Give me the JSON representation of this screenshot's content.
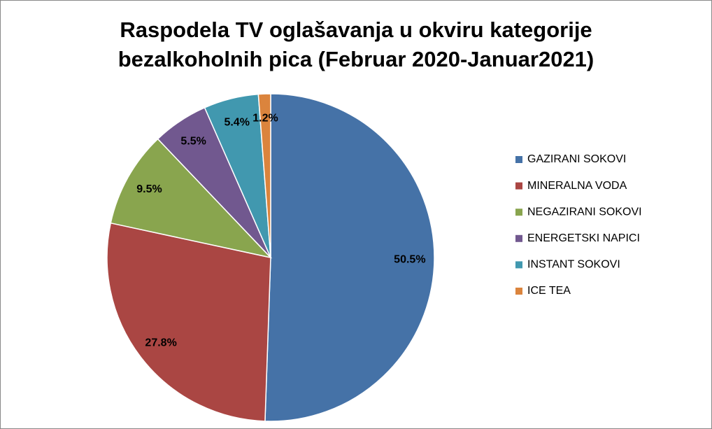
{
  "chart_data": {
    "type": "pie",
    "title": [
      "Raspodela TV oglašavanja u okviru kategorije",
      "bezalkoholnih pica (Februar 2020-Januar2021)"
    ],
    "categories": [
      "GAZIRANI SOKOVI",
      "MINERALNA VODA",
      "NEGAZIRANI SOKOVI",
      "ENERGETSKI NAPICI",
      "INSTANT SOKOVI",
      "ICE TEA"
    ],
    "values": [
      50.5,
      27.8,
      9.5,
      5.5,
      5.4,
      1.2
    ],
    "value_labels": [
      "50.5%",
      "27.8%",
      "9.5%",
      "5.5%",
      "5.4%",
      "1.2%"
    ],
    "colors": [
      "#4572a7",
      "#aa4643",
      "#89a54e",
      "#71588f",
      "#4198af",
      "#db843d"
    ],
    "legend": "right"
  }
}
